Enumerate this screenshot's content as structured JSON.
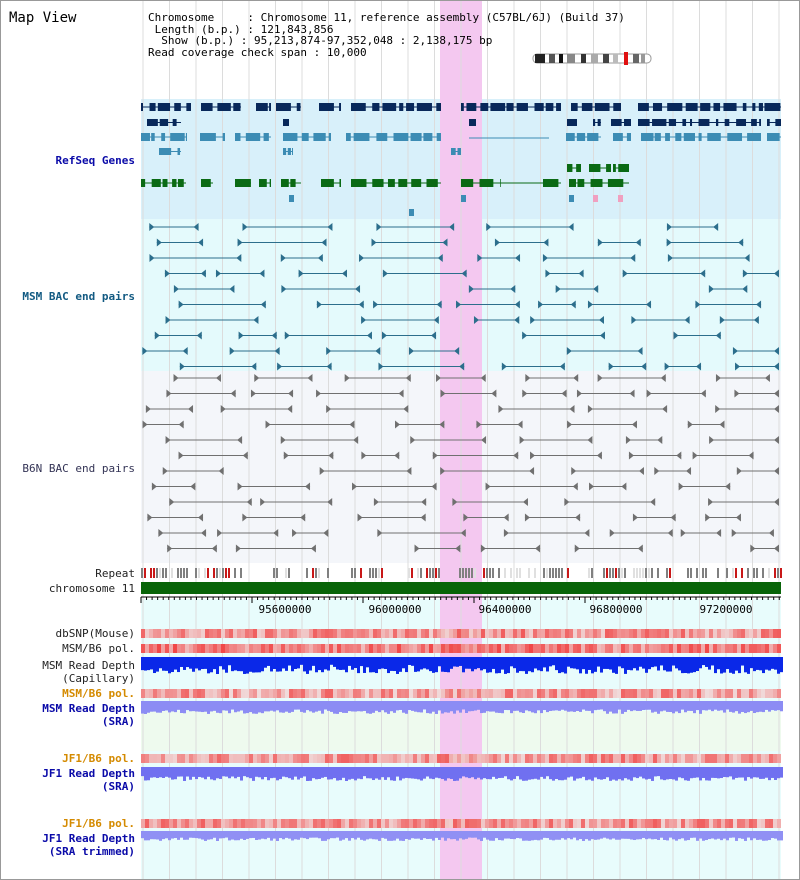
{
  "title": "Map View",
  "info": {
    "chromosome_label": "Chromosome",
    "chromosome_value": "Chromosome 11, reference assembly (C57BL/6J) (Build 37)",
    "length_label": "Length (b.p.)",
    "length_value": "121,843,856",
    "show_label": "Show (b.p.)",
    "show_value": "95,213,874-97,352,048 : 2,138,175 bp",
    "coverage_label": "Read coverage check span",
    "coverage_value": "10,000"
  },
  "tracks": {
    "refseq": "RefSeq Genes",
    "msm_bac": "MSM BAC end pairs",
    "b6n_bac": "B6N BAC end pairs",
    "repeat": "Repeat",
    "chromosome": "chromosome 11",
    "dbsnp": "dbSNP(Mouse)",
    "msm_b6_pol": "MSM/B6 pol.",
    "msm_depth_cap_1": "MSM Read Depth",
    "msm_depth_cap_2": "(Capillary)",
    "msm_b6_pol_sra": "MSM/B6 pol.",
    "msm_depth_sra_1": "MSM Read Depth",
    "msm_depth_sra_2": "(SRA)",
    "jf1_pol_1": "JF1/B6 pol.",
    "jf1_depth_1": "JF1 Read Depth",
    "jf1_depth_1b": "(SRA)",
    "jf1_pol_2": "JF1/B6 pol.",
    "jf1_depth_2": "JF1 Read Depth",
    "jf1_depth_2b": "(SRA trimmed)"
  },
  "axis": {
    "ticks": [
      "95600000",
      "96000000",
      "96400000",
      "96800000",
      "97200000"
    ]
  },
  "colors": {
    "highlight": "#f4c8f0",
    "refseq_bg": "#d8f0fa",
    "msm_bg": "#e4fafc",
    "b6n_bg": "#f4f6fa",
    "chrom": "#086408",
    "gene_dark": "#08285a",
    "gene_mid": "#3c8cb4",
    "gene_green": "#0a6a14",
    "msm_pair": "#2c6e8c",
    "b6n_pair": "#707070"
  }
}
